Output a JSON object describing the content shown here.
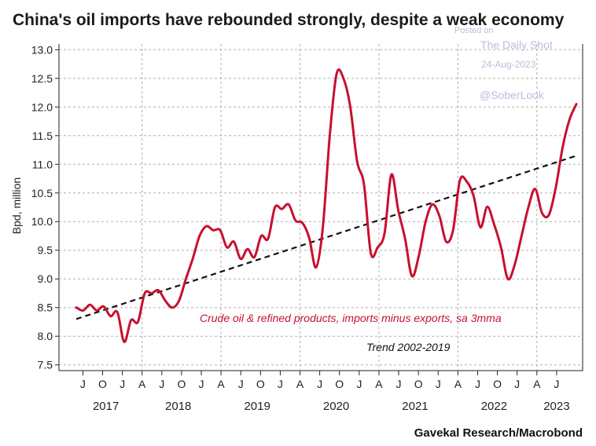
{
  "chart_data": {
    "type": "line",
    "title": "China's oil imports have rebounded strongly, despite a weak economy",
    "ylabel": "Bpd, million",
    "ylim": [
      7.4,
      13.1
    ],
    "yticks": [
      "13.0",
      "12.5",
      "12.0",
      "11.5",
      "11.0",
      "10.5",
      "10.0",
      "9.5",
      "9.0",
      "8.5",
      "8.0",
      "7.5"
    ],
    "x_start": "2017-03",
    "x_end": "2023-07",
    "month_ticks": [
      "J",
      "O",
      "J",
      "A",
      "J",
      "O",
      "J",
      "A",
      "J",
      "O",
      "J",
      "A",
      "J",
      "O",
      "J",
      "A",
      "J",
      "O",
      "J",
      "A",
      "J",
      "O",
      "J",
      "A",
      "J"
    ],
    "years": [
      "2017",
      "2018",
      "2019",
      "2020",
      "2021",
      "2022",
      "2023"
    ],
    "series": [
      {
        "name": "Crude oil & refined products, imports minus exports, sa 3mma",
        "color": "#c8102e",
        "style": "solid",
        "values": [
          8.5,
          8.45,
          8.55,
          8.45,
          8.52,
          8.35,
          8.42,
          7.9,
          8.28,
          8.25,
          8.75,
          8.75,
          8.8,
          8.62,
          8.5,
          8.62,
          9.0,
          9.35,
          9.75,
          9.92,
          9.85,
          9.85,
          9.55,
          9.65,
          9.35,
          9.52,
          9.38,
          9.75,
          9.7,
          10.25,
          10.22,
          10.3,
          10.02,
          9.98,
          9.72,
          9.2,
          9.9,
          11.5,
          12.58,
          12.5,
          12.0,
          11.05,
          10.65,
          9.45,
          9.55,
          9.8,
          10.82,
          10.2,
          9.7,
          9.05,
          9.4,
          10.0,
          10.3,
          10.1,
          9.65,
          9.85,
          10.72,
          10.7,
          10.45,
          9.9,
          10.26,
          9.95,
          9.55,
          9.0,
          9.25,
          9.75,
          10.25,
          10.57,
          10.15,
          10.12,
          10.6,
          11.3,
          11.78,
          12.05
        ]
      },
      {
        "name": "Trend 2002-2019",
        "color": "#111111",
        "style": "dashed",
        "values": [
          8.3,
          11.15
        ]
      }
    ],
    "annotations": [
      {
        "text": "Crude oil & refined products, imports minus exports, sa 3mma"
      },
      {
        "text": "Trend 2002-2019"
      }
    ]
  },
  "source": "Gavekal Research/Macrobond",
  "watermark": {
    "posted_on": "Posted on",
    "site": "The Daily Shot",
    "date": "24-Aug-2023",
    "handle": "@SoberLook"
  },
  "colors": {
    "main_series": "#c8102e",
    "trend": "#111111",
    "grid": "#b0b0b0"
  }
}
